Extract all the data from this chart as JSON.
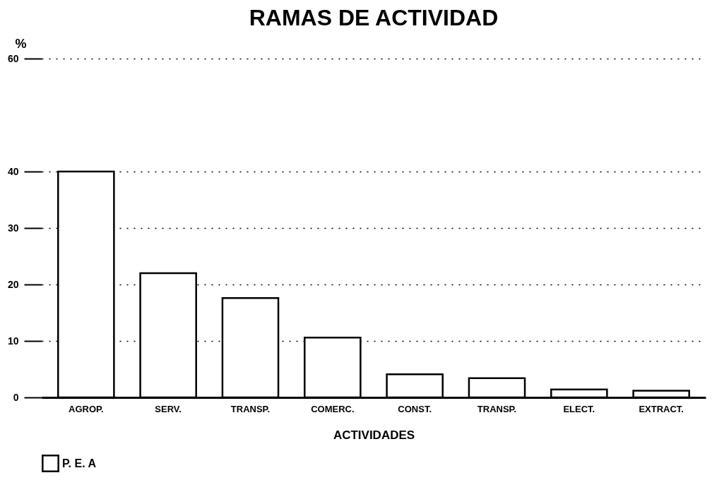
{
  "chart_data": {
    "type": "bar",
    "title": "RAMAS DE ACTIVIDAD",
    "xlabel": "ACTIVIDADES",
    "ylabel": "%",
    "categories": [
      "AGROP.",
      "SERV.",
      "TRANSP.",
      "COMERC.",
      "CONST.",
      "TRANSP.",
      "ELECT.",
      "EXTRACT."
    ],
    "series": [
      {
        "name": "P. E. A",
        "color": "#000000",
        "values": [
          40,
          22,
          17.6,
          10.6,
          4.1,
          3.4,
          1.4,
          1.2
        ]
      }
    ],
    "ylim": [
      0,
      60
    ],
    "yticks": [
      0,
      10,
      20,
      30,
      40,
      60
    ],
    "grid": "y",
    "legend": "bottom"
  }
}
